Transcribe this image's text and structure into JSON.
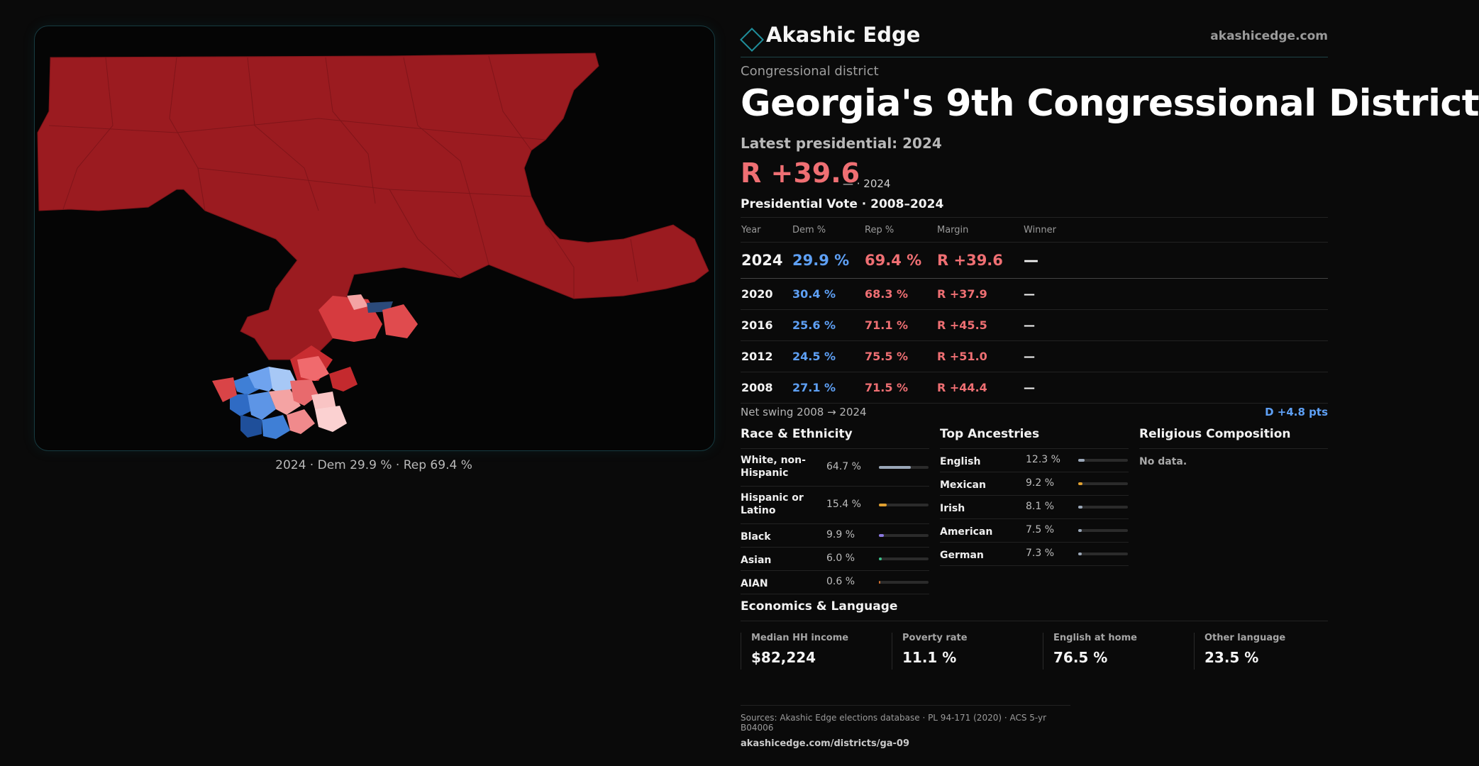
{
  "brand": {
    "name": "Akashic Edge",
    "domain": "akashicedge.com",
    "icon": "diamond-logo-icon"
  },
  "kicker": "Congressional district",
  "title": "Georgia's 9th Congressional District",
  "latest_label": "Latest presidential: 2024",
  "headline": {
    "margin": "R +39.6",
    "sub": "— · 2024"
  },
  "map": {
    "caption": "2024 · Dem 29.9 % · Rep 69.4 %",
    "colors": {
      "rep": "#9b1b20",
      "dem": "#3f7fd6"
    }
  },
  "presidential": {
    "title": "Presidential Vote · 2008–2024",
    "headers": [
      "Year",
      "Dem %",
      "Rep %",
      "Margin",
      "Winner"
    ],
    "rows": [
      {
        "year": "2024",
        "dem": "29.9 %",
        "rep": "69.4 %",
        "margin": "R +39.6",
        "winner": "—"
      },
      {
        "year": "2020",
        "dem": "30.4 %",
        "rep": "68.3 %",
        "margin": "R +37.9",
        "winner": "—"
      },
      {
        "year": "2016",
        "dem": "25.6 %",
        "rep": "71.1 %",
        "margin": "R +45.5",
        "winner": "—"
      },
      {
        "year": "2012",
        "dem": "24.5 %",
        "rep": "75.5 %",
        "margin": "R +51.0",
        "winner": "—"
      },
      {
        "year": "2008",
        "dem": "27.1 %",
        "rep": "71.5 %",
        "margin": "R +44.4",
        "winner": "—"
      }
    ],
    "swing_label": "Net swing 2008 → 2024",
    "swing_value": "D +4.8 pts"
  },
  "race": {
    "title": "Race & Ethnicity",
    "items": [
      {
        "label": "White, non-Hispanic",
        "pct": "64.7 %",
        "value": 64.7,
        "color": "#9aa7b8"
      },
      {
        "label": "Hispanic or Latino",
        "pct": "15.4 %",
        "value": 15.4,
        "color": "#e0a030"
      },
      {
        "label": "Black",
        "pct": "9.9 %",
        "value": 9.9,
        "color": "#8a78e0"
      },
      {
        "label": "Asian",
        "pct": "6.0 %",
        "value": 6.0,
        "color": "#3cc08a"
      },
      {
        "label": "AIAN",
        "pct": "0.6 %",
        "value": 0.6,
        "color": "#d07030"
      }
    ]
  },
  "ancestry": {
    "title": "Top Ancestries",
    "items": [
      {
        "label": "English",
        "pct": "12.3 %",
        "value": 12.3,
        "color": "#9aa7b8"
      },
      {
        "label": "Mexican",
        "pct": "9.2 %",
        "value": 9.2,
        "color": "#e0a030"
      },
      {
        "label": "Irish",
        "pct": "8.1 %",
        "value": 8.1,
        "color": "#9aa7b8"
      },
      {
        "label": "American",
        "pct": "7.5 %",
        "value": 7.5,
        "color": "#9aa7b8"
      },
      {
        "label": "German",
        "pct": "7.3 %",
        "value": 7.3,
        "color": "#9aa7b8"
      }
    ]
  },
  "religion": {
    "title": "Religious Composition",
    "empty": "No data."
  },
  "economics": {
    "title": "Economics & Language",
    "items": [
      {
        "key": "Median HH income",
        "value": "$82,224"
      },
      {
        "key": "Poverty rate",
        "value": "11.1 %"
      },
      {
        "key": "English at home",
        "value": "76.5 %"
      },
      {
        "key": "Other language",
        "value": "23.5 %"
      }
    ]
  },
  "footer": {
    "sources": "Sources: Akashic Edge elections database · PL 94-171 (2020) · ACS 5-yr B04006",
    "url": "akashicedge.com/districts/ga-09"
  }
}
